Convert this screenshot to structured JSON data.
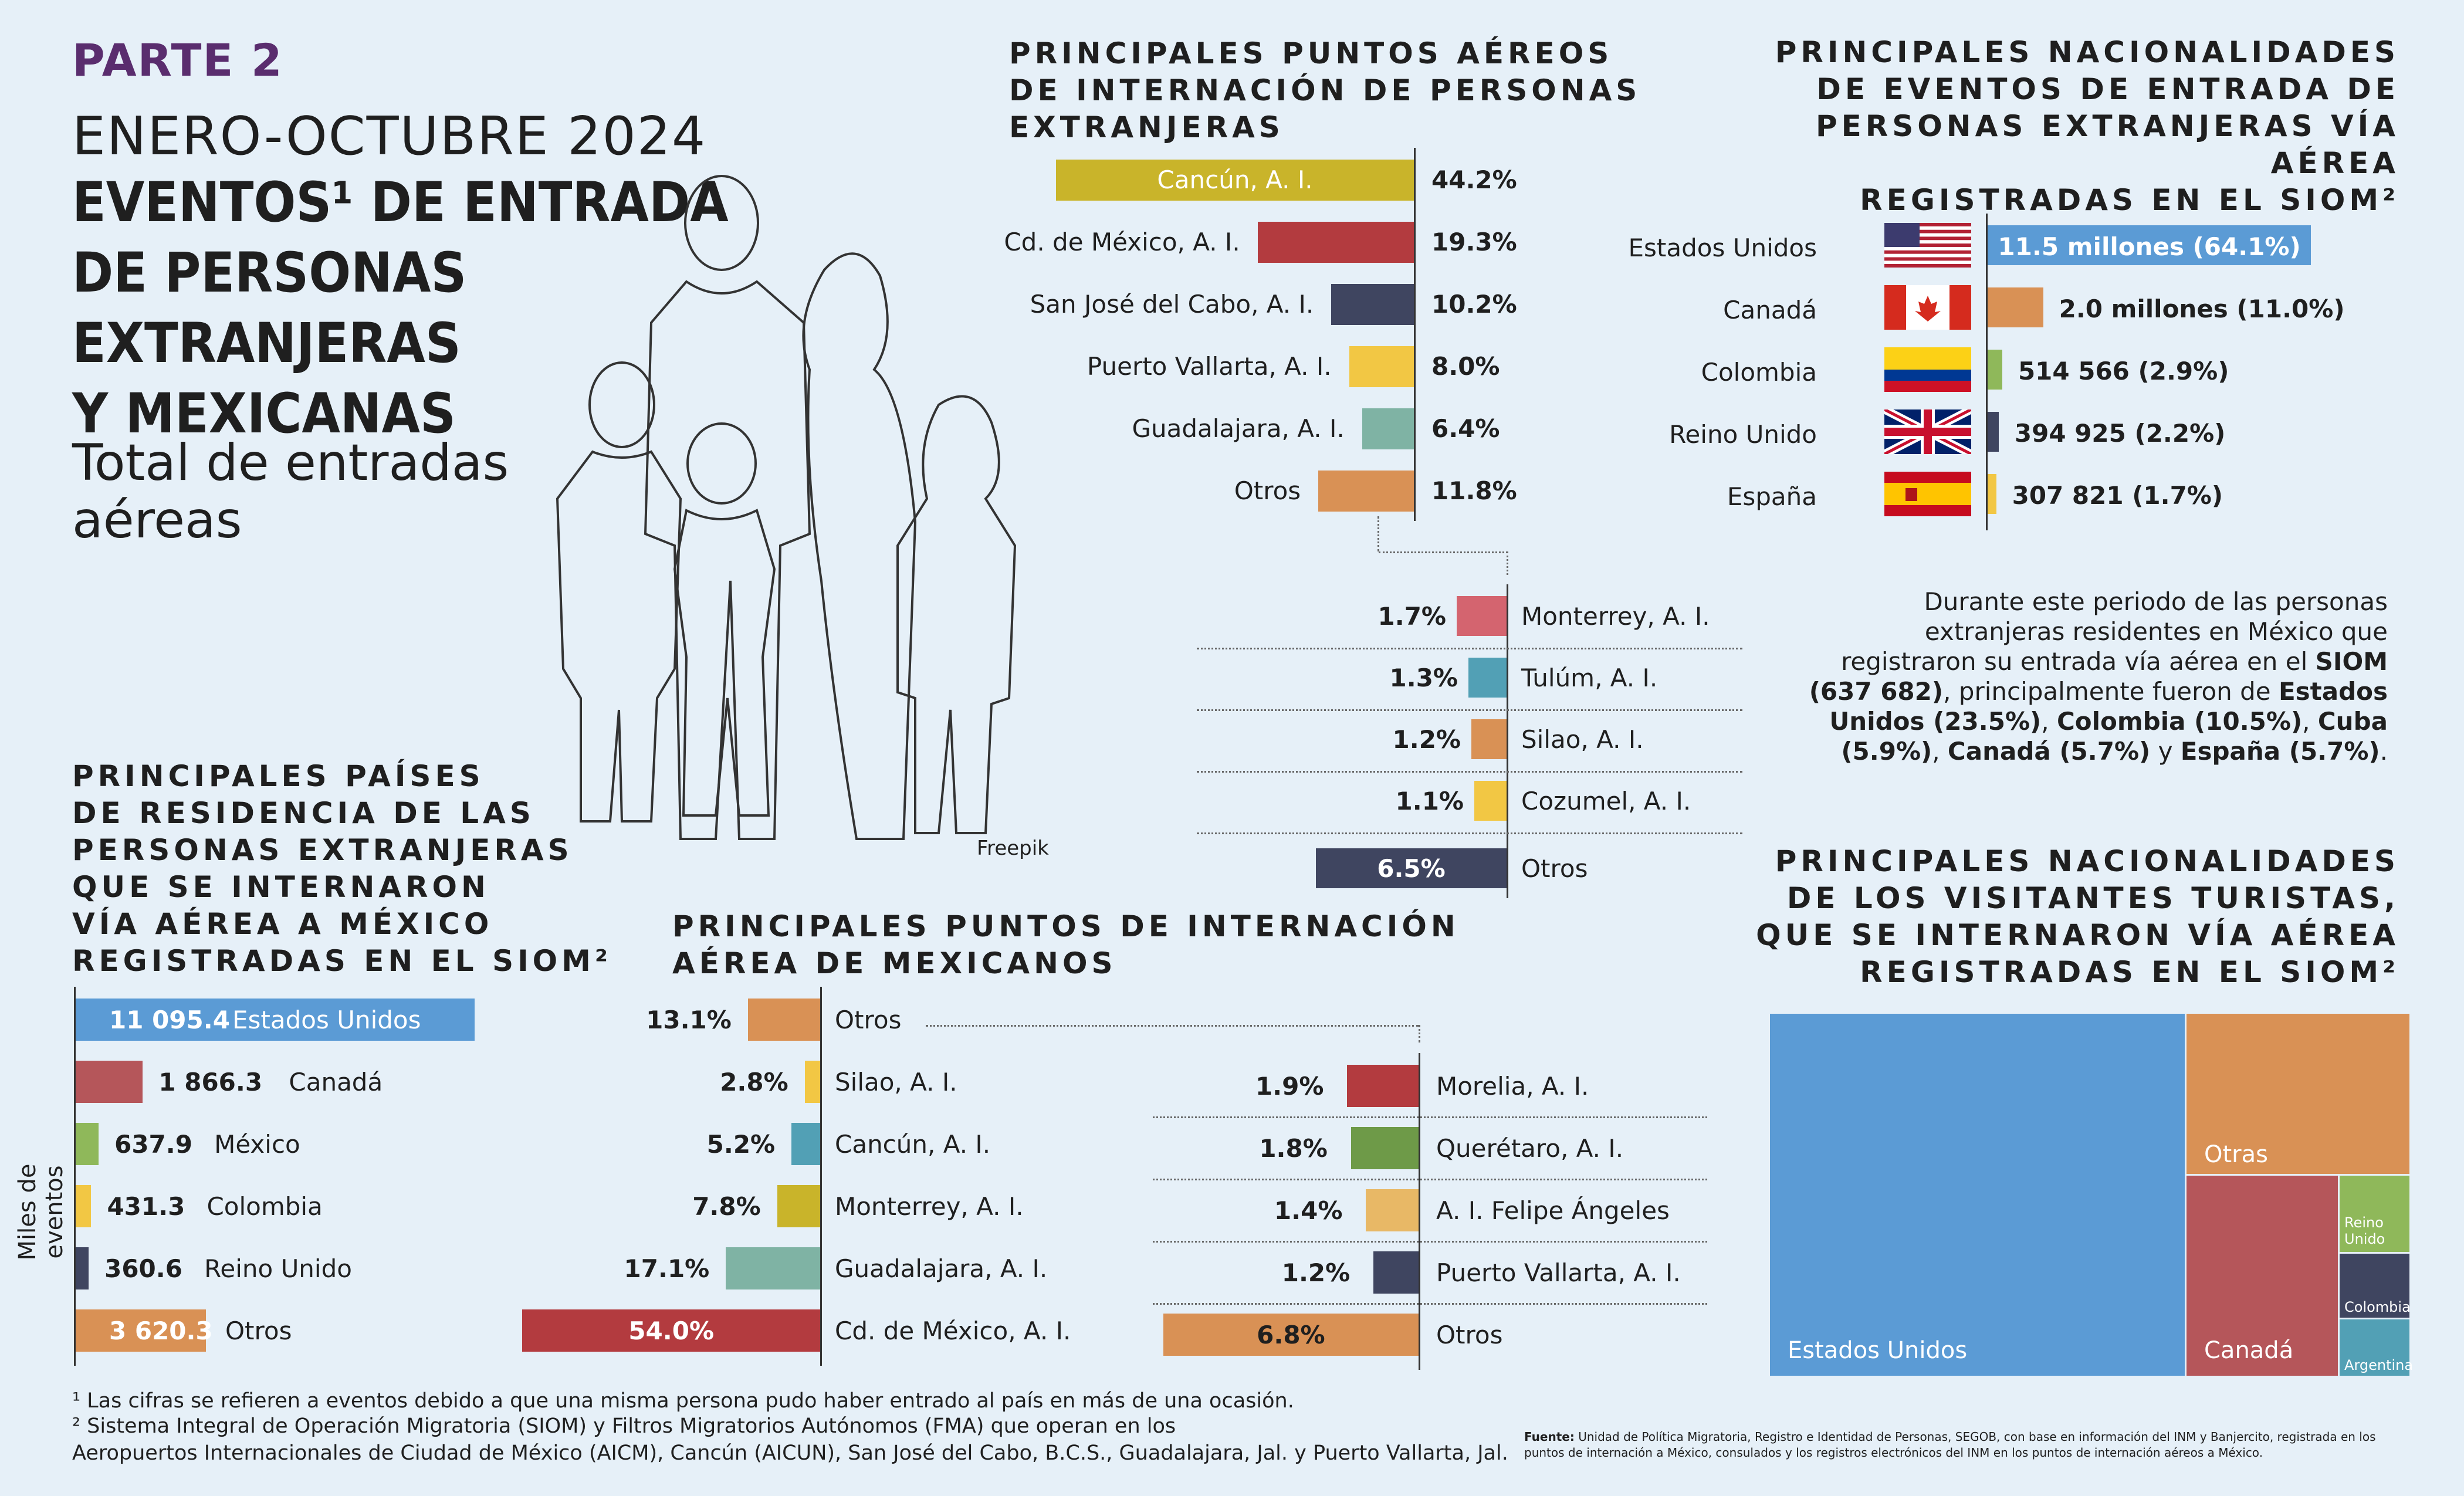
{
  "header": {
    "part": "PARTE 2",
    "period": "ENERO-OCTUBRE 2024",
    "headline": "EVENTOS¹ DE ENTRADA\nDE PERSONAS\nEXTRANJERAS\nY MEXICANAS",
    "subhead": "Total de entradas\naéreas",
    "credit": "Freepik"
  },
  "colors": {
    "background": "#e6f0f8",
    "accent": "#5a2d6e",
    "blue": "#5b9bd5",
    "red": "#b5565a",
    "green": "#8fb85a",
    "yellow": "#f2c744",
    "navy": "#3f4560",
    "orange": "#d99155",
    "crimson": "#b33b3f",
    "teal": "#7fb3a4",
    "mustard": "#c9b42a"
  },
  "paragraph": [
    {
      "text": "Durante este periodo de las personas extranjeras residentes en México que registraron su entrada vía aérea en el ",
      "bold": false
    },
    {
      "text": "SIOM",
      "bold": true
    },
    {
      "text": " ",
      "bold": false
    },
    {
      "text": "(637 682)",
      "bold": true
    },
    {
      "text": ", principalmente fueron de ",
      "bold": false
    },
    {
      "text": "Estados Unidos (23.5%)",
      "bold": true
    },
    {
      "text": ", ",
      "bold": false
    },
    {
      "text": "Colombia (10.5%)",
      "bold": true
    },
    {
      "text": ", ",
      "bold": false
    },
    {
      "text": "Cuba (5.9%)",
      "bold": true
    },
    {
      "text": ", ",
      "bold": false
    },
    {
      "text": "Canadá (5.7%)",
      "bold": true
    },
    {
      "text": " y ",
      "bold": false
    },
    {
      "text": "España (5.7%)",
      "bold": true
    },
    {
      "text": ".",
      "bold": false
    }
  ],
  "footnotes": {
    "note1": "¹ Las cifras se refieren a eventos debido a que una misma persona pudo haber entrado al país en más de una ocasión.",
    "note2": "² Sistema Integral de Operación Migratoria (SIOM) y Filtros Migratorios Autónomos (FMA) que operan en los\nAeropuertos Internacionales de Ciudad de México (AICM), Cancún (AICUN), San José del Cabo, B.C.S., Guadalajara, Jal. y Puerto Vallarta, Jal.",
    "source_label": "Fuente:",
    "source": "Unidad de Política Migratoria, Registro e Identidad de Personas, SEGOB, con base en información del INM y Banjercito, registrada en los puntos de internación a México, consulados y los registros electrónicos del INM en los puntos de internación aéreos a México."
  },
  "chart_data": [
    {
      "id": "foreign-airports",
      "type": "bar",
      "title": "PRINCIPALES PUNTOS AÉREOS\nDE INTERNACIÓN DE PERSONAS\nEXTRANJERAS",
      "categories": [
        "Cancún, A. I.",
        "Cd. de México, A. I.",
        "San José del Cabo, A. I.",
        "Puerto Vallarta, A. I.",
        "Guadalajara, A. I.",
        "Otros"
      ],
      "values": [
        44.2,
        19.3,
        10.2,
        8.0,
        6.4,
        11.8
      ],
      "labels": [
        "44.2%",
        "19.3%",
        "10.2%",
        "8.0%",
        "6.4%",
        "11.8%"
      ],
      "colors": [
        "#c9b42a",
        "#b33b3f",
        "#3f4560",
        "#f2c744",
        "#7fb3a4",
        "#d99155"
      ]
    },
    {
      "id": "foreign-airports-others",
      "type": "bar",
      "categories": [
        "Monterrey, A. I.",
        "Tulúm, A. I.",
        "Silao, A. I.",
        "Cozumel, A. I.",
        "Otros"
      ],
      "values": [
        1.7,
        1.3,
        1.2,
        1.1,
        6.5
      ],
      "labels": [
        "1.7%",
        "1.3%",
        "1.2%",
        "1.1%",
        "6.5%"
      ],
      "colors": [
        "#d4646f",
        "#52a0b5",
        "#d99155",
        "#f2c744",
        "#3f4560"
      ]
    },
    {
      "id": "foreign-nationalities",
      "type": "bar",
      "title": "PRINCIPALES NACIONALIDADES\nDE EVENTOS DE ENTRADA DE\nPERSONAS EXTRANJERAS VÍA AÉREA\nREGISTRADAS EN EL SIOM²",
      "categories": [
        "Estados Unidos",
        "Canadá",
        "Colombia",
        "Reino Unido",
        "España"
      ],
      "values": [
        64.1,
        11.0,
        2.9,
        2.2,
        1.7
      ],
      "labels": [
        "11.5 millones (64.1%)",
        "2.0 millones  (11.0%)",
        "514 566  (2.9%)",
        "394 925  (2.2%)",
        "307 821  (1.7%)"
      ],
      "colors": [
        "#5b9bd5",
        "#d99155",
        "#8fb85a",
        "#3f4560",
        "#f2c744"
      ],
      "flags": [
        "us-flag",
        "canada-flag",
        "colombia-flag",
        "uk-flag",
        "spain-flag"
      ]
    },
    {
      "id": "residence-countries",
      "type": "bar",
      "title": "PRINCIPALES PAÍSES\nDE RESIDENCIA DE LAS\nPERSONAS EXTRANJERAS\nQUE SE INTERNARON\nVÍA AÉREA A MÉXICO\nREGISTRADAS EN EL SIOM²",
      "ylabel": "Miles de eventos",
      "categories": [
        "Estados Unidos",
        "Canadá",
        "México",
        "Colombia",
        "Reino Unido",
        "Otros"
      ],
      "values": [
        11095.4,
        1866.3,
        637.9,
        431.3,
        360.6,
        3620.3
      ],
      "labels": [
        "11 095.4",
        "1 866.3",
        "637.9",
        "431.3",
        "360.6",
        "3 620.3"
      ],
      "colors": [
        "#5b9bd5",
        "#b5565a",
        "#8fb85a",
        "#f2c744",
        "#3f4560",
        "#d99155"
      ]
    },
    {
      "id": "mexican-airports",
      "type": "bar",
      "title": "PRINCIPALES PUNTOS DE INTERNACIÓN\nAÉREA DE MEXICANOS",
      "categories": [
        "Otros",
        "Silao, A. I.",
        "Cancún, A. I.",
        "Monterrey, A. I.",
        "Guadalajara, A. I.",
        "Cd. de México, A. I."
      ],
      "values": [
        13.1,
        2.8,
        5.2,
        7.8,
        17.1,
        54.0
      ],
      "labels": [
        "13.1%",
        "2.8%",
        "5.2%",
        "7.8%",
        "17.1%",
        "54.0%"
      ],
      "colors": [
        "#d99155",
        "#f2c744",
        "#52a0b5",
        "#c9b42a",
        "#7fb3a4",
        "#b33b3f"
      ]
    },
    {
      "id": "mexican-airports-others",
      "type": "bar",
      "categories": [
        "Morelia, A. I.",
        "Querétaro, A. I.",
        "A. I. Felipe Ángeles",
        "Puerto Vallarta, A. I.",
        "Otros"
      ],
      "values": [
        1.9,
        1.8,
        1.4,
        1.2,
        6.8
      ],
      "labels": [
        "1.9%",
        "1.8%",
        "1.4%",
        "1.2%",
        "6.8%"
      ],
      "colors": [
        "#b33b3f",
        "#6e9a48",
        "#e8b866",
        "#3f4560",
        "#d99155"
      ]
    },
    {
      "id": "tourist-nationalities",
      "type": "treemap",
      "title": "PRINCIPALES NACIONALIDADES\nDE LOS VISITANTES TURISTAS,\nQUE SE INTERNARON VÍA AÉREA\nREGISTRADAS EN EL SIOM²",
      "categories": [
        "Estados Unidos",
        "Otras",
        "Canadá",
        "Reino Unido",
        "Colombia",
        "Argentina"
      ],
      "values": [
        60.7,
        15.4,
        14.0,
        4.4,
        3.6,
        2.0
      ],
      "colors": [
        "#5b9bd5",
        "#d99155",
        "#b5565a",
        "#8fb85a",
        "#3f4560",
        "#52a0b5"
      ]
    }
  ]
}
